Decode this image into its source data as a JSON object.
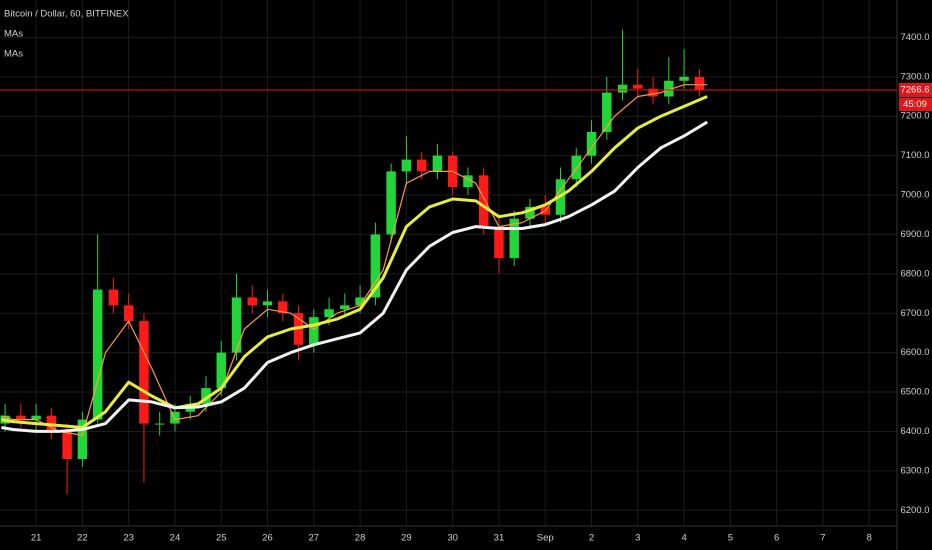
{
  "chart_data": {
    "type": "candlestick",
    "title": "Bitcoin / Dollar, 60, BITFINEX",
    "indicators": [
      "MAs",
      "MAs"
    ],
    "up_color": "#22d63a",
    "down_color": "#ff1a1a",
    "grid": true,
    "x": [
      20.33,
      20.67,
      21,
      21.33,
      21.67,
      22,
      22.33,
      22.67,
      23,
      23.33,
      23.67,
      24,
      24.33,
      24.67,
      25,
      25.33,
      25.67,
      26,
      26.33,
      26.67,
      27,
      27.33,
      27.67,
      28,
      28.33,
      28.67,
      29,
      29.33,
      29.67,
      30,
      30.33,
      30.67,
      31,
      31.33,
      31.67,
      32,
      32.33,
      32.67,
      33,
      33.33,
      33.67,
      34,
      34.33,
      34.67,
      35,
      35.33
    ],
    "open": [
      6420,
      6440,
      6430,
      6440,
      6400,
      6330,
      6430,
      6760,
      6720,
      6680,
      6420,
      6420,
      6450,
      6470,
      6510,
      6600,
      6740,
      6720,
      6730,
      6700,
      6620,
      6690,
      6710,
      6720,
      6740,
      6900,
      7060,
      7090,
      7060,
      7100,
      7020,
      7050,
      6920,
      6840,
      6940,
      6970,
      6950,
      7040,
      7100,
      7160,
      7260,
      7280,
      7270,
      7250,
      7290,
      7300
    ],
    "high": [
      6470,
      6470,
      6470,
      6460,
      6420,
      6450,
      6900,
      6790,
      6750,
      6700,
      6450,
      6470,
      6490,
      6540,
      6630,
      6800,
      6770,
      6760,
      6750,
      6720,
      6710,
      6740,
      6750,
      6770,
      6930,
      7080,
      7150,
      7110,
      7130,
      7110,
      7070,
      7070,
      6950,
      6960,
      6990,
      7000,
      7070,
      7120,
      7190,
      7300,
      7420,
      7320,
      7300,
      7350,
      7370,
      7320
    ],
    "low": [
      6400,
      6410,
      6400,
      6380,
      6240,
      6310,
      6420,
      6700,
      6660,
      6270,
      6390,
      6400,
      6430,
      6450,
      6490,
      6580,
      6700,
      6690,
      6680,
      6580,
      6600,
      6670,
      6690,
      6700,
      6720,
      6880,
      7030,
      7040,
      7040,
      7000,
      7000,
      6900,
      6800,
      6820,
      6920,
      6930,
      6930,
      7020,
      7080,
      7140,
      7240,
      7250,
      7230,
      7230,
      7270,
      7250
    ],
    "close": [
      6440,
      6430,
      6440,
      6400,
      6330,
      6430,
      6760,
      6720,
      6680,
      6420,
      6420,
      6450,
      6470,
      6510,
      6600,
      6740,
      6720,
      6730,
      6700,
      6620,
      6690,
      6710,
      6720,
      6740,
      6900,
      7060,
      7090,
      7060,
      7100,
      7020,
      7050,
      6920,
      6840,
      6940,
      6970,
      6950,
      7040,
      7100,
      7160,
      7260,
      7280,
      7270,
      7250,
      7290,
      7300,
      7266.6
    ],
    "moving_averages": [
      {
        "color": "#ff9a3c",
        "width": 1.2,
        "x": [
          20.25,
          20.5,
          21,
          21.5,
          22,
          22.5,
          23,
          23.5,
          24,
          24.5,
          25,
          25.5,
          26,
          26.5,
          27,
          27.5,
          28,
          28.5,
          29,
          29.5,
          30,
          30.5,
          31,
          31.5,
          32,
          32.5,
          33,
          33.5,
          34,
          34.5,
          35,
          35.5
        ],
        "values": [
          6440,
          6430,
          6430,
          6400,
          6390,
          6600,
          6680,
          6560,
          6430,
          6440,
          6500,
          6660,
          6710,
          6700,
          6660,
          6700,
          6720,
          6810,
          7030,
          7060,
          7060,
          7030,
          6920,
          6930,
          6960,
          7040,
          7120,
          7200,
          7250,
          7260,
          7280,
          7280
        ]
      },
      {
        "color": "#e6ee3a",
        "width": 3,
        "x": [
          20.25,
          20.5,
          21,
          21.5,
          22,
          22.5,
          23,
          23.5,
          24,
          24.5,
          25,
          25.5,
          26,
          26.5,
          27,
          27.5,
          28,
          28.5,
          29,
          29.5,
          30,
          30.5,
          31,
          31.5,
          32,
          32.5,
          33,
          33.5,
          34,
          34.5,
          35,
          35.5
        ],
        "values": [
          6430,
          6425,
          6420,
          6415,
          6410,
          6450,
          6525,
          6490,
          6460,
          6470,
          6510,
          6590,
          6640,
          6660,
          6670,
          6685,
          6710,
          6790,
          6920,
          6970,
          6990,
          6985,
          6945,
          6955,
          6975,
          7010,
          7060,
          7120,
          7170,
          7200,
          7225,
          7250
        ]
      },
      {
        "color": "#f2f2f2",
        "width": 3,
        "x": [
          20.25,
          20.5,
          21,
          21.5,
          22,
          22.5,
          23,
          23.5,
          24,
          24.5,
          25,
          25.5,
          26,
          26.5,
          27,
          27.5,
          28,
          28.5,
          29,
          29.5,
          30,
          30.5,
          31,
          31.5,
          32,
          32.5,
          33,
          33.5,
          34,
          34.5,
          35,
          35.5
        ],
        "values": [
          6410,
          6405,
          6400,
          6400,
          6405,
          6420,
          6480,
          6475,
          6460,
          6462,
          6475,
          6510,
          6575,
          6600,
          6620,
          6635,
          6650,
          6700,
          6810,
          6870,
          6905,
          6920,
          6915,
          6915,
          6925,
          6945,
          6975,
          7010,
          7070,
          7120,
          7150,
          7185
        ]
      }
    ],
    "xlim": [
      20.22,
      39.6
    ],
    "xticks": [
      21,
      22,
      23,
      24,
      25,
      26,
      27,
      28,
      29,
      30,
      31,
      {
        "value": 32,
        "label": "Sep"
      },
      {
        "value": 33,
        "label": "2"
      },
      {
        "value": 34,
        "label": "3"
      },
      {
        "value": 35,
        "label": "4"
      },
      {
        "value": 36,
        "label": "5"
      },
      {
        "value": 37,
        "label": "6"
      },
      {
        "value": 38,
        "label": "7"
      },
      {
        "value": 39,
        "label": "8"
      }
    ],
    "ylim": [
      6160,
      7495
    ],
    "yticks": [
      {
        "value": 6200,
        "label": "6200.0"
      },
      {
        "value": 6300,
        "label": "6300.0"
      },
      {
        "value": 6400,
        "label": "6400.0"
      },
      {
        "value": 6500,
        "label": "6500.0"
      },
      {
        "value": 6600,
        "label": "6600.0"
      },
      {
        "value": 6700,
        "label": "6700.0"
      },
      {
        "value": 6800,
        "label": "6800.0"
      },
      {
        "value": 6900,
        "label": "6900.0"
      },
      {
        "value": 7000,
        "label": "7000.0"
      },
      {
        "value": 7100,
        "label": "7100.0"
      },
      {
        "value": 7200,
        "label": "7200.0"
      },
      {
        "value": 7300,
        "label": "7300.0"
      },
      {
        "value": 7400,
        "label": "7400.0"
      }
    ],
    "last_price": {
      "value": 7266.6,
      "label": "7266.6"
    },
    "last_price_color": "#e0161b",
    "countdown": "45:09"
  }
}
